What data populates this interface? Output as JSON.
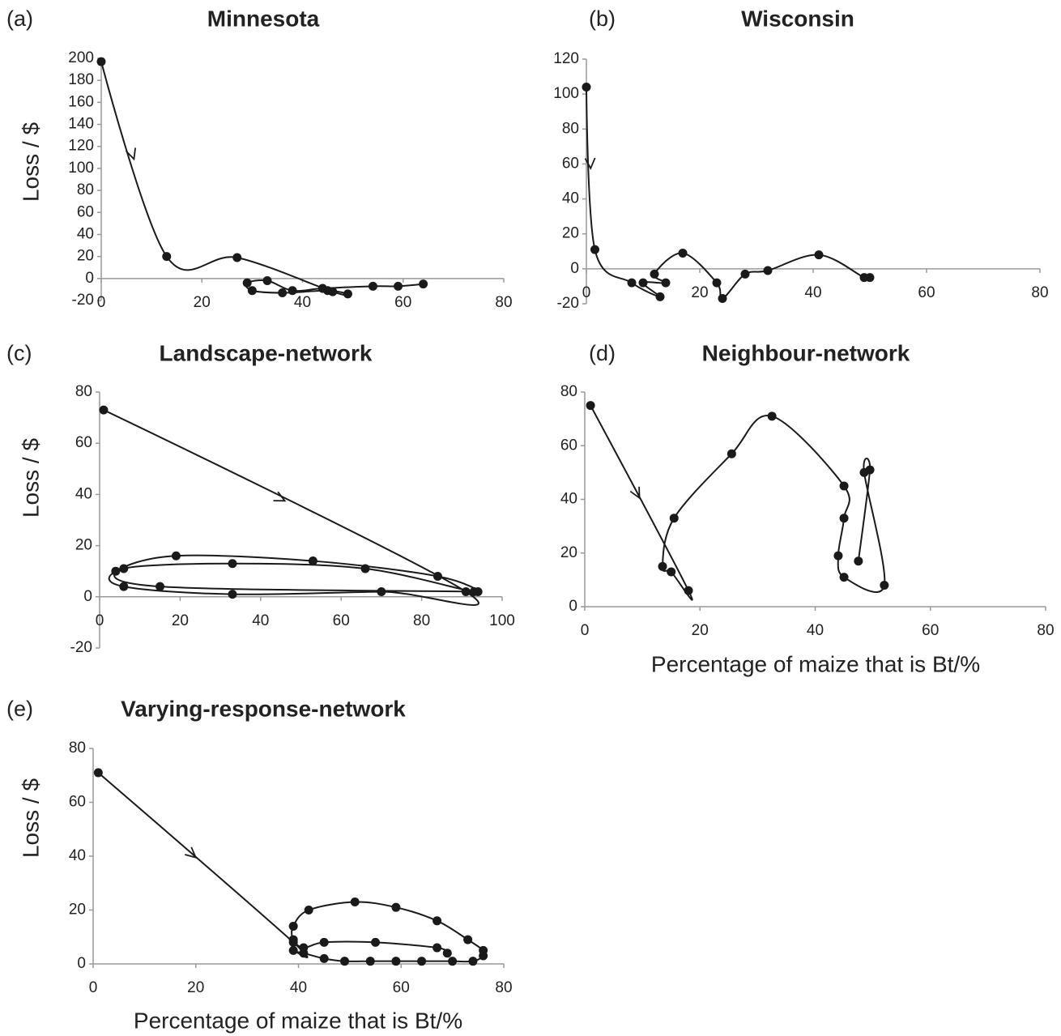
{
  "chart_data": [
    {
      "type": "line",
      "panel_label": "(a)",
      "title": "Minnesota",
      "ylabel": "Loss / $",
      "color": "#1a1a1a",
      "x": [
        0,
        13,
        27,
        46,
        49,
        45,
        36,
        30,
        29,
        33,
        38,
        44,
        54,
        59,
        64
      ],
      "values": [
        197,
        20,
        19,
        -12,
        -14,
        -11,
        -13,
        -11,
        -4,
        -2,
        -11,
        -9,
        -7,
        -7,
        -5
      ],
      "xlim": [
        0,
        80
      ],
      "xticks": [
        0,
        20,
        40,
        60,
        80
      ],
      "ylim": [
        -20,
        200
      ],
      "yticks": [
        -20,
        0,
        20,
        40,
        60,
        80,
        100,
        120,
        140,
        160,
        180,
        200
      ]
    },
    {
      "type": "line",
      "panel_label": "(b)",
      "title": "Wisconsin",
      "color": "#1a1a1a",
      "x": [
        0,
        1.5,
        8,
        13,
        10,
        14,
        12,
        17,
        23,
        24,
        28,
        32,
        41,
        49,
        50
      ],
      "values": [
        104,
        11,
        -8,
        -16,
        -8,
        -8,
        -3,
        9,
        -8,
        -17,
        -3,
        -1,
        8,
        -5,
        -5
      ],
      "xlim": [
        0,
        80
      ],
      "xticks": [
        0,
        20,
        40,
        60,
        80
      ],
      "ylim": [
        -20,
        120
      ],
      "yticks": [
        -20,
        0,
        20,
        40,
        60,
        80,
        100,
        120
      ]
    },
    {
      "type": "line",
      "panel_label": "(c)",
      "title": "Landscape-network",
      "ylabel": "Loss / $",
      "color": "#1a1a1a",
      "x": [
        1,
        91,
        70,
        33,
        6,
        4,
        19,
        53,
        84,
        93,
        66,
        33,
        6,
        15,
        94
      ],
      "values": [
        73,
        2,
        2,
        1,
        4,
        10,
        16,
        14,
        8,
        2,
        11,
        13,
        11,
        4,
        2
      ],
      "xlim": [
        0,
        100
      ],
      "xticks": [
        0,
        20,
        40,
        60,
        80,
        100
      ],
      "ylim": [
        -20,
        80
      ],
      "yticks": [
        -20,
        0,
        20,
        40,
        60,
        80
      ]
    },
    {
      "type": "line",
      "panel_label": "(d)",
      "title": "Neighbour-network",
      "xlabel": "Percentage of maize that is Bt/%",
      "color": "#1a1a1a",
      "x": [
        1,
        18,
        15,
        13.5,
        15.5,
        25.5,
        32.5,
        45,
        45,
        44,
        45,
        52,
        48.5,
        49.5,
        47.5
      ],
      "values": [
        75,
        6,
        13,
        15,
        33,
        57,
        71,
        45,
        33,
        19,
        11,
        8,
        50,
        51,
        17
      ],
      "xlim": [
        0,
        80
      ],
      "xticks": [
        0,
        20,
        40,
        60,
        80
      ],
      "ylim": [
        0,
        80
      ],
      "yticks": [
        0,
        20,
        40,
        60,
        80
      ]
    },
    {
      "type": "line",
      "panel_label": "(e)",
      "title": "Varying-response-network",
      "ylabel": "Loss / $",
      "xlabel": "Percentage of maize that is Bt/%",
      "color": "#1a1a1a",
      "x": [
        1,
        39,
        39,
        41,
        45,
        49,
        54,
        59,
        64,
        70,
        74,
        76,
        76,
        73,
        67,
        59,
        51,
        42,
        39,
        39,
        41,
        45,
        55,
        67,
        69
      ],
      "values": [
        71,
        8,
        5,
        4,
        2,
        1,
        1,
        1,
        1,
        1,
        1,
        3,
        5,
        9,
        16,
        21,
        23,
        20,
        14,
        9,
        6,
        8,
        8,
        6,
        4
      ],
      "xlim": [
        0,
        80
      ],
      "xticks": [
        0,
        20,
        40,
        60,
        80
      ],
      "ylim": [
        0,
        80
      ],
      "yticks": [
        0,
        20,
        40,
        60,
        80
      ]
    }
  ]
}
